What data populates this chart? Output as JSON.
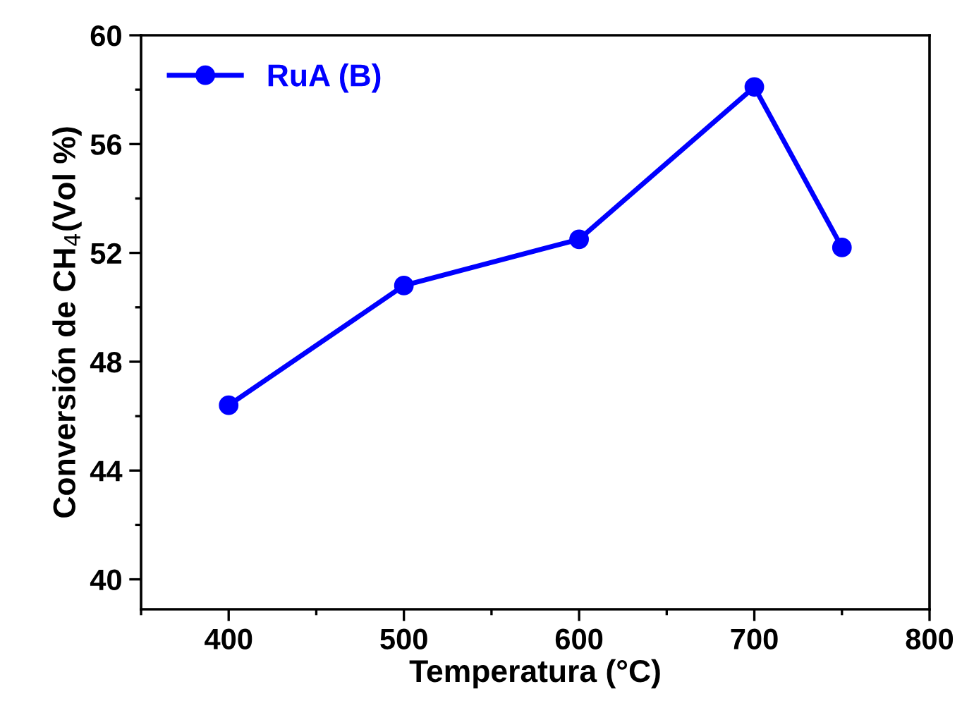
{
  "chart_data": {
    "type": "line",
    "xlabel": "Temperatura (°C)",
    "ylabel": "Conversión de CH$_{4}$(Vol %)",
    "x": [
      400,
      500,
      600,
      700,
      750
    ],
    "series": [
      {
        "name": "RuA (B)",
        "color": "#0000ff",
        "values": [
          46.4,
          50.8,
          52.5,
          58.1,
          52.2
        ]
      }
    ],
    "xlim": [
      350,
      800
    ],
    "xticks": [
      400,
      500,
      600,
      700,
      800
    ],
    "ylim": [
      38.9,
      60
    ],
    "yticks": [
      40,
      44,
      48,
      52,
      56,
      60
    ],
    "marker": "circle",
    "line_style": "solid",
    "grid": false,
    "legend": "top left"
  }
}
